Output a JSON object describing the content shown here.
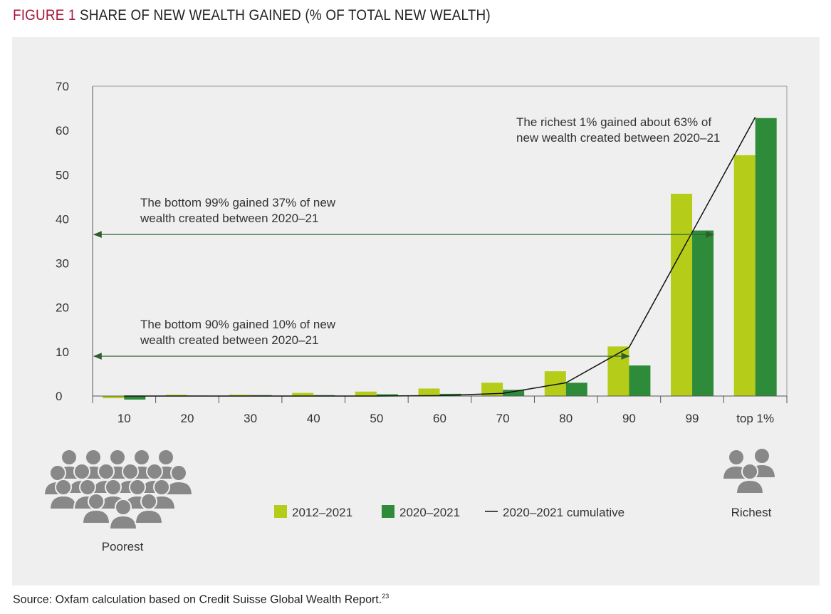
{
  "title": {
    "figure_label": "FIGURE 1",
    "text": "SHARE OF NEW WEALTH GAINED (% OF TOTAL NEW WEALTH)"
  },
  "source": {
    "text": "Source: Oxfam calculation based on Credit Suisse Global Wealth Report.",
    "footnote": "23"
  },
  "icons": {
    "poorest": "crowd-of-people-icon",
    "richest": "group-of-three-people-icon"
  },
  "labels": {
    "poorest": "Poorest",
    "richest": "Richest"
  },
  "colors": {
    "title_accent": "#a5193a",
    "series_2012_2021": "#b5cc18",
    "series_2020_2021": "#2e8b3a",
    "cumulative": "#111111",
    "arrow": "#2f5f2f",
    "panel": "#efefef"
  },
  "chart_data": {
    "type": "bar",
    "categories": [
      "10",
      "20",
      "30",
      "40",
      "50",
      "60",
      "70",
      "80",
      "90",
      "99",
      "top 1%"
    ],
    "series": [
      {
        "name": "2012–2021",
        "type": "bar",
        "values": [
          -0.5,
          0.3,
          0.3,
          0.7,
          1.0,
          1.7,
          3.0,
          5.6,
          11.2,
          45.7,
          54.4
        ]
      },
      {
        "name": "2020–2021",
        "type": "bar",
        "values": [
          -0.8,
          0.1,
          0.2,
          0.2,
          0.4,
          0.5,
          1.4,
          3.0,
          6.9,
          37.4,
          62.8
        ]
      },
      {
        "name": "2020–2021 cumulative",
        "type": "line",
        "values": [
          0,
          0,
          0,
          0,
          0,
          0.1,
          0.6,
          3.0,
          11.0,
          37.0,
          63.0
        ]
      }
    ],
    "ylim": [
      0,
      70
    ],
    "yticks": [
      0,
      10,
      20,
      30,
      40,
      50,
      60,
      70
    ],
    "grid": false,
    "legend": "bottom-center",
    "annotations": [
      {
        "lines": [
          "The richest 1% gained about 63% of",
          "new wealth created between 2020–21"
        ],
        "y": 63
      },
      {
        "lines": [
          "The bottom 99% gained 37% of new",
          "wealth created between 2020–21"
        ],
        "arrow_y": 36.5,
        "arrow_to": "99"
      },
      {
        "lines": [
          "The bottom 90% gained 10% of new",
          "wealth created between 2020–21"
        ],
        "arrow_y": 9,
        "arrow_to": "90"
      }
    ]
  }
}
